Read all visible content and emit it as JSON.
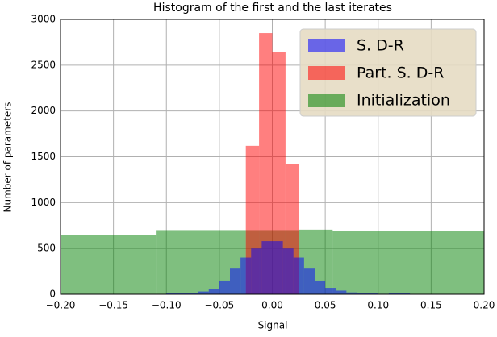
{
  "chart_data": {
    "type": "histogram",
    "title": "Histogram of the first and the last iterates",
    "x_label": "Signal",
    "y_label": "Number of parameters",
    "xlim": [
      -0.2,
      0.2
    ],
    "ylim": [
      0,
      3000
    ],
    "xticks": [
      {
        "value": -0.2,
        "label": "−0.20"
      },
      {
        "value": -0.15,
        "label": "−0.15"
      },
      {
        "value": -0.1,
        "label": "−0.10"
      },
      {
        "value": -0.05,
        "label": "−0.05"
      },
      {
        "value": 0,
        "label": "0.00"
      },
      {
        "value": 0.05,
        "label": "0.05"
      },
      {
        "value": 0.1,
        "label": "0.10"
      },
      {
        "value": 0.15,
        "label": "0.15"
      },
      {
        "value": 0.2,
        "label": "0.20"
      }
    ],
    "yticks": [
      0,
      500,
      1000,
      1500,
      2000,
      2500,
      3000
    ],
    "grid": true,
    "legend": "upper right",
    "series": [
      {
        "name": "S. D-R",
        "color": "#0000ff",
        "bins": [
          -0.1,
          -0.09,
          -0.08,
          -0.07,
          -0.06,
          -0.05,
          -0.04,
          -0.03,
          -0.02,
          -0.01,
          0,
          0.01,
          0.02,
          0.03,
          0.04,
          0.05,
          0.06,
          0.07,
          0.08,
          0.09,
          0.1,
          0.11,
          0.12,
          0.13
        ],
        "values": [
          10,
          10,
          15,
          30,
          60,
          150,
          280,
          400,
          500,
          580,
          580,
          500,
          400,
          280,
          150,
          70,
          40,
          20,
          15,
          10,
          5,
          10,
          10
        ]
      },
      {
        "name": "Part. S. D-R",
        "color": "#ff0000",
        "bins": [
          -0.025,
          -0.0125,
          0,
          0.0125,
          0.025
        ],
        "values": [
          1620,
          2850,
          2640,
          1420
        ]
      },
      {
        "name": "Initialization",
        "color": "#008000",
        "bins": [
          -0.2,
          -0.11,
          -0.025,
          0.025,
          0.057,
          0.2
        ],
        "values": [
          650,
          700,
          700,
          705,
          690
        ]
      }
    ]
  }
}
